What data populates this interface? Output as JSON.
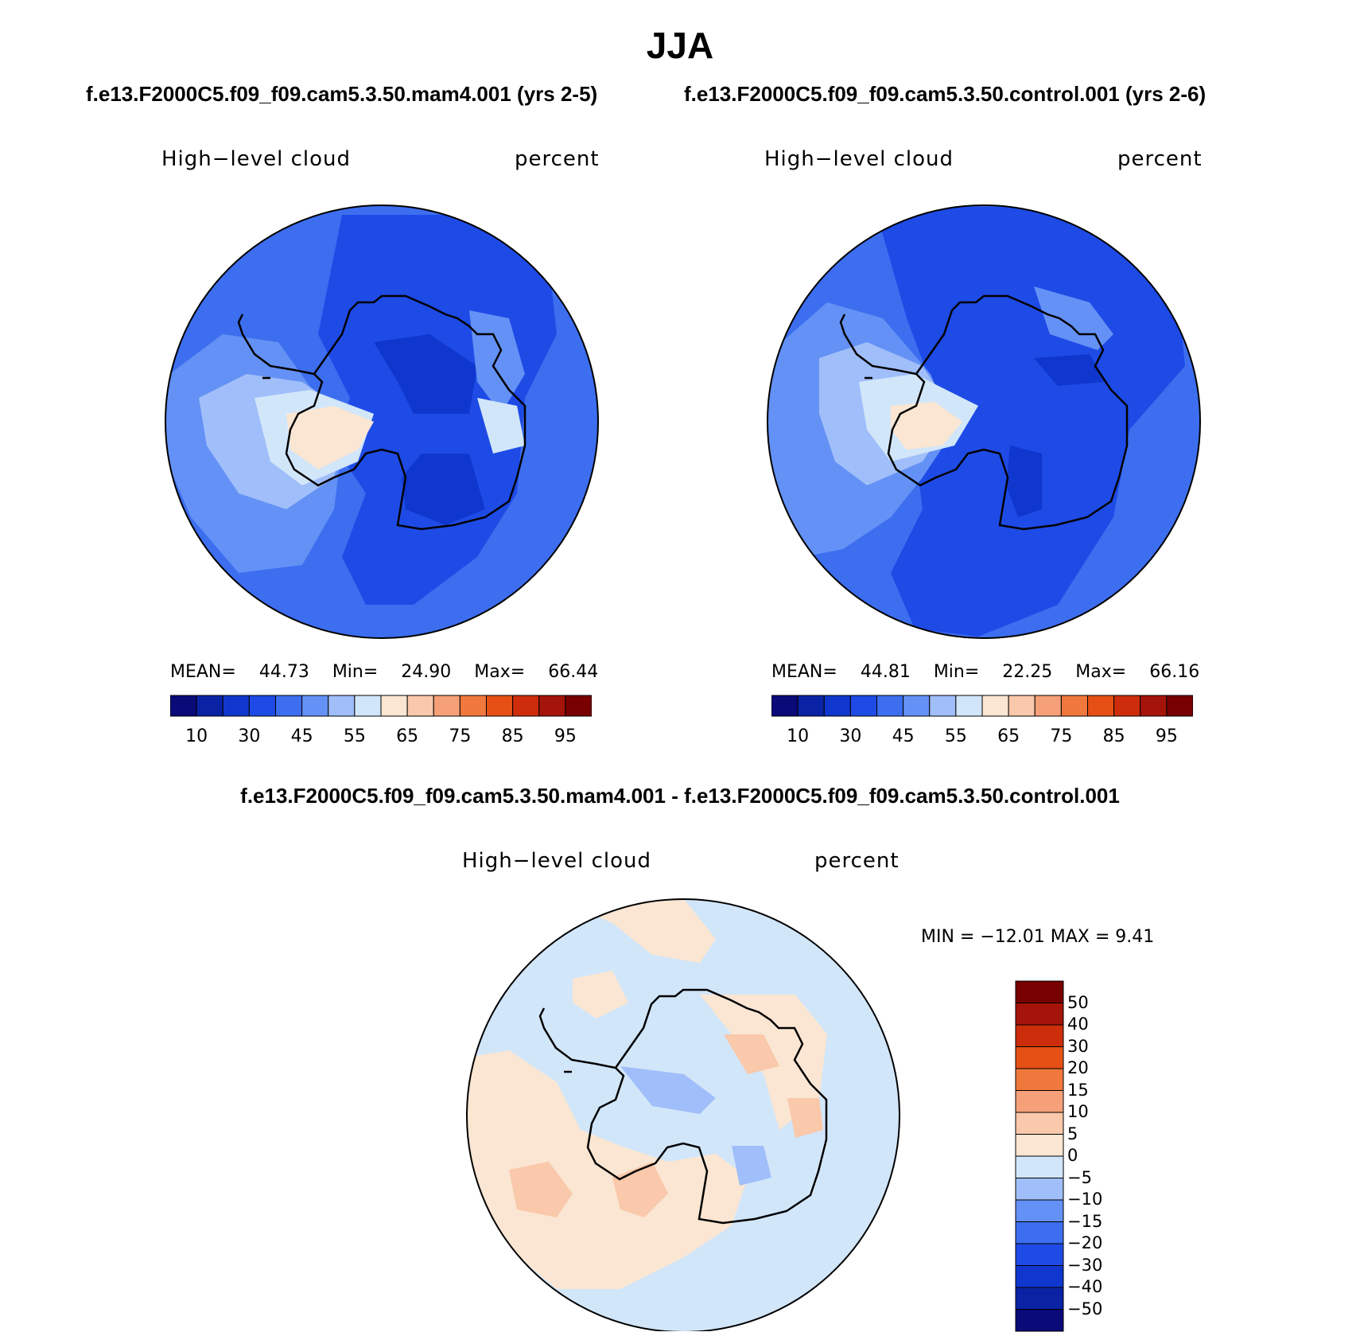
{
  "title": "JJA",
  "top_subtitle_left": "f.e13.F2000C5.f09_f09.cam5.3.50.mam4.001 (yrs 2-5)",
  "top_subtitle_right": "f.e13.F2000C5.f09_f09.cam5.3.50.control.001 (yrs 2-6)",
  "bottom_subtitle": "f.e13.F2000C5.f09_f09.cam5.3.50.mam4.001 - f.e13.F2000C5.f09_f09.cam5.3.50.control.001",
  "panels": [
    {
      "variable": "High−level cloud",
      "units": "percent",
      "mean_label": "MEAN=",
      "mean": "44.73",
      "min_label": "Min=",
      "min": "24.90",
      "max_label": "Max=",
      "max": "66.44"
    },
    {
      "variable": "High−level cloud",
      "units": "percent",
      "mean_label": "MEAN=",
      "mean": "44.81",
      "min_label": "Min=",
      "min": "22.25",
      "max_label": "Max=",
      "max": "66.16"
    },
    {
      "variable": "High−level cloud",
      "units": "percent",
      "minmax_text": "MIN = −12.01 MAX =    9.41"
    }
  ],
  "colorbar_abs": {
    "colors": [
      "#0a0a78",
      "#0a23a5",
      "#0f37cd",
      "#1e4be6",
      "#3c6eef",
      "#6491f5",
      "#a0bef9",
      "#d2e6fa",
      "#fae6d2",
      "#fac8aa",
      "#f5a078",
      "#f0783c",
      "#e65014",
      "#cd2d0a",
      "#a5140a",
      "#780000"
    ],
    "tick_labels": [
      "10",
      "30",
      "45",
      "55",
      "65",
      "75",
      "85",
      "95"
    ]
  },
  "colorbar_diff": {
    "colors": [
      "#780000",
      "#a5140a",
      "#cd2d0a",
      "#e65014",
      "#f0783c",
      "#f5a078",
      "#fac8aa",
      "#fae6d2",
      "#d2e6fa",
      "#a0bef9",
      "#6491f5",
      "#3c6eef",
      "#1e4be6",
      "#0f37cd",
      "#0a23a5",
      "#0a0a78"
    ],
    "tick_labels": [
      "50",
      "40",
      "30",
      "20",
      "15",
      "10",
      "5",
      "0",
      "−5",
      "−10",
      "−15",
      "−20",
      "−30",
      "−40",
      "−50"
    ]
  },
  "map_colors": {
    "outline": "#000000",
    "abs_background": "#3c6eef",
    "abs_dark": "#1e4be6",
    "abs_darker": "#0f37cd",
    "abs_mid": "#6491f5",
    "abs_light": "#a0bef9",
    "abs_lighter": "#d2e6fa",
    "abs_warm": "#fae6d2",
    "diff_background": "#d2e6fa",
    "diff_warm": "#fae6d2",
    "diff_warmer": "#fac8aa",
    "diff_cool": "#a0bef9"
  }
}
